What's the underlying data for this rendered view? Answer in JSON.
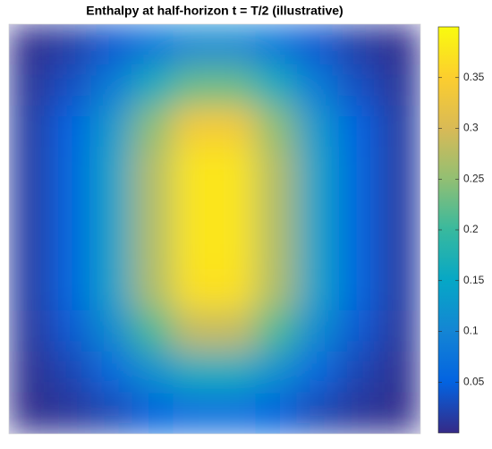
{
  "chart_data": {
    "type": "heatmap",
    "title": "Enthalpy at half-horizon t = T/2 (illustrative)",
    "z": [
      [
        0.004,
        0.016,
        0.041,
        0.078,
        0.107,
        0.107,
        0.078,
        0.041,
        0.016,
        0.004
      ],
      [
        0.009,
        0.033,
        0.085,
        0.162,
        0.224,
        0.224,
        0.162,
        0.085,
        0.033,
        0.009
      ],
      [
        0.014,
        0.05,
        0.129,
        0.246,
        0.339,
        0.339,
        0.246,
        0.129,
        0.05,
        0.014
      ],
      [
        0.015,
        0.055,
        0.143,
        0.272,
        0.375,
        0.375,
        0.272,
        0.143,
        0.055,
        0.015
      ],
      [
        0.015,
        0.055,
        0.143,
        0.272,
        0.375,
        0.375,
        0.272,
        0.143,
        0.055,
        0.015
      ],
      [
        0.015,
        0.055,
        0.143,
        0.272,
        0.375,
        0.375,
        0.272,
        0.143,
        0.055,
        0.015
      ],
      [
        0.015,
        0.054,
        0.141,
        0.268,
        0.37,
        0.37,
        0.268,
        0.141,
        0.054,
        0.015
      ],
      [
        0.011,
        0.042,
        0.109,
        0.208,
        0.286,
        0.286,
        0.208,
        0.109,
        0.042,
        0.011
      ],
      [
        0.006,
        0.024,
        0.061,
        0.117,
        0.161,
        0.161,
        0.117,
        0.061,
        0.024,
        0.006
      ],
      [
        0.003,
        0.01,
        0.025,
        0.048,
        0.066,
        0.066,
        0.048,
        0.025,
        0.01,
        0.003
      ]
    ],
    "clim": [
      0,
      0.4
    ],
    "cticks": [
      0.05,
      0.1,
      0.15,
      0.2,
      0.25,
      0.3,
      0.35
    ],
    "colormap": [
      "#352a87",
      "#0363e1",
      "#1485d4",
      "#06a7c6",
      "#38b99e",
      "#92bf73",
      "#d9ba56",
      "#fcce2e",
      "#f9fb0e"
    ]
  }
}
